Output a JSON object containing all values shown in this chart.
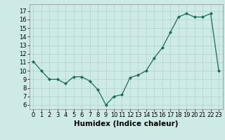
{
  "x": [
    0,
    1,
    2,
    3,
    4,
    5,
    6,
    7,
    8,
    9,
    10,
    11,
    12,
    13,
    14,
    15,
    16,
    17,
    18,
    19,
    20,
    21,
    22,
    23
  ],
  "y": [
    11.1,
    10.0,
    9.0,
    9.0,
    8.5,
    9.3,
    9.3,
    8.8,
    7.8,
    6.0,
    7.0,
    7.2,
    9.2,
    9.5,
    10.0,
    11.5,
    12.7,
    14.5,
    16.3,
    16.7,
    16.3,
    16.3,
    16.7,
    10.0
  ],
  "xlabel": "Humidex (Indice chaleur)",
  "ylim": [
    5.5,
    17.8
  ],
  "xlim": [
    -0.5,
    23.5
  ],
  "yticks": [
    6,
    7,
    8,
    9,
    10,
    11,
    12,
    13,
    14,
    15,
    16,
    17
  ],
  "xticks": [
    0,
    1,
    2,
    3,
    4,
    5,
    6,
    7,
    8,
    9,
    10,
    11,
    12,
    13,
    14,
    15,
    16,
    17,
    18,
    19,
    20,
    21,
    22,
    23
  ],
  "line_color": "#1a6b5a",
  "marker": "D",
  "marker_size": 2.0,
  "bg_color": "#ceeae6",
  "grid_color": "#afd4cf",
  "tick_fontsize": 6.0,
  "xlabel_fontsize": 7.5
}
